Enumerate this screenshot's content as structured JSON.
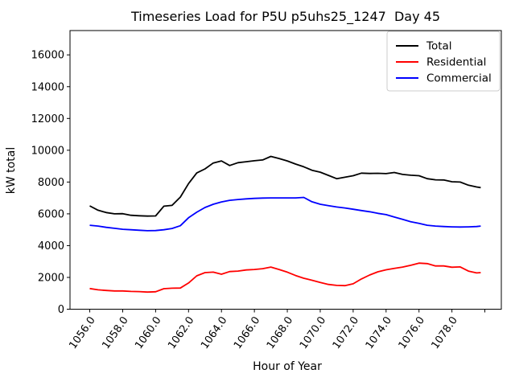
{
  "chart_data": {
    "type": "line",
    "title": "Timeseries Load for P5U p5uhs25_1247  Day 45",
    "xlabel": "Hour of Year",
    "ylabel": "kW total",
    "xlim": [
      1054.8,
      1081.0
    ],
    "ylim": [
      0,
      17530
    ],
    "grid": false,
    "legend_position": "upper right",
    "x_ticks": [
      1056,
      1058,
      1060,
      1062,
      1064,
      1066,
      1068,
      1070,
      1072,
      1074,
      1076,
      1078,
      1080
    ],
    "x_tick_labels": [
      "1056.0",
      "1058.0",
      "1060.0",
      "1062.0",
      "1064.0",
      "1066.0",
      "1068.0",
      "1070.0",
      "1072.0",
      "1074.0",
      "1076.0",
      "1078.0",
      ""
    ],
    "y_ticks": [
      0,
      2000,
      4000,
      6000,
      8000,
      10000,
      12000,
      14000,
      16000
    ],
    "x": [
      1056.0,
      1056.5,
      1057.0,
      1057.5,
      1058.0,
      1058.5,
      1059.0,
      1059.5,
      1060.0,
      1060.5,
      1061.0,
      1061.5,
      1062.0,
      1062.5,
      1063.0,
      1063.5,
      1064.0,
      1064.5,
      1065.0,
      1065.5,
      1066.0,
      1066.5,
      1067.0,
      1067.5,
      1068.0,
      1068.5,
      1069.0,
      1069.5,
      1070.0,
      1070.5,
      1071.0,
      1071.5,
      1072.0,
      1072.5,
      1073.0,
      1073.5,
      1074.0,
      1074.5,
      1075.0,
      1075.5,
      1076.0,
      1076.5,
      1077.0,
      1077.5,
      1078.0,
      1078.5,
      1079.0,
      1079.5,
      1079.75
    ],
    "series": [
      {
        "name": "Total",
        "color": "#000000",
        "values": [
          6500,
          6230,
          6080,
          6000,
          6010,
          5910,
          5880,
          5860,
          5870,
          6480,
          6530,
          7050,
          7900,
          8570,
          8830,
          9200,
          9330,
          9040,
          9220,
          9280,
          9340,
          9390,
          9610,
          9480,
          9330,
          9130,
          8960,
          8740,
          8620,
          8420,
          8210,
          8300,
          8400,
          8560,
          8540,
          8550,
          8530,
          8600,
          8480,
          8430,
          8400,
          8210,
          8140,
          8130,
          8020,
          8000,
          7800,
          7690,
          7650
        ]
      },
      {
        "name": "Residential",
        "color": "#ff0000",
        "values": [
          1300,
          1220,
          1180,
          1150,
          1150,
          1120,
          1110,
          1080,
          1100,
          1290,
          1320,
          1330,
          1650,
          2100,
          2300,
          2330,
          2200,
          2370,
          2400,
          2470,
          2500,
          2550,
          2650,
          2500,
          2330,
          2120,
          1950,
          1820,
          1680,
          1560,
          1500,
          1480,
          1600,
          1900,
          2150,
          2350,
          2480,
          2570,
          2650,
          2760,
          2900,
          2870,
          2720,
          2720,
          2640,
          2660,
          2400,
          2280,
          2300
        ]
      },
      {
        "name": "Commercial",
        "color": "#0000ff",
        "values": [
          5280,
          5230,
          5150,
          5090,
          5030,
          5000,
          4970,
          4940,
          4950,
          5000,
          5080,
          5250,
          5750,
          6100,
          6400,
          6600,
          6750,
          6850,
          6900,
          6940,
          6970,
          6990,
          7000,
          7000,
          7000,
          7000,
          7030,
          6760,
          6600,
          6510,
          6430,
          6370,
          6290,
          6210,
          6130,
          6030,
          5950,
          5800,
          5650,
          5500,
          5400,
          5280,
          5230,
          5200,
          5180,
          5170,
          5180,
          5200,
          5230
        ]
      }
    ]
  }
}
